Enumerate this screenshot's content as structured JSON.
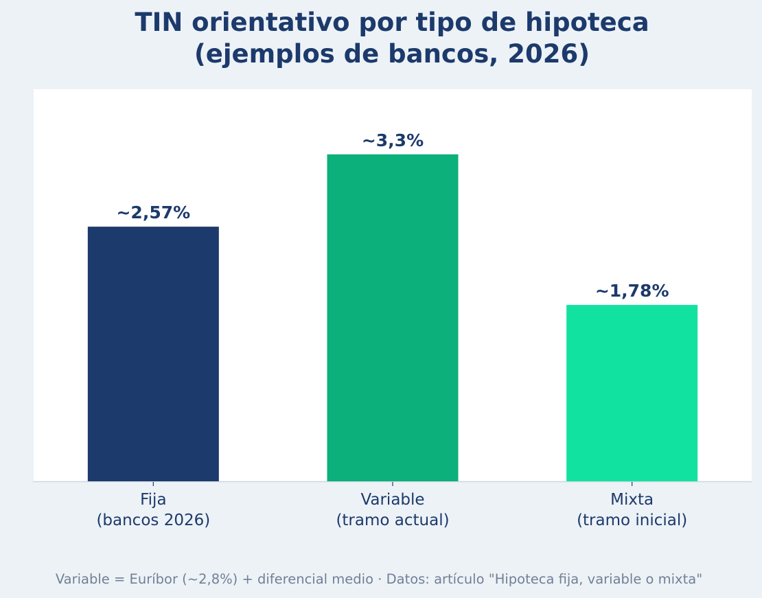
{
  "chart_data": {
    "type": "bar",
    "title_lines": [
      "TIN orientativo por tipo de hipoteca",
      "(ejemplos de bancos, 2026)"
    ],
    "categories": [
      [
        "Fija",
        "(bancos 2026)"
      ],
      [
        "Variable",
        "(tramo actual)"
      ],
      [
        "Mixta",
        "(tramo inicial)"
      ]
    ],
    "values": [
      2.57,
      3.3,
      1.78
    ],
    "value_labels": [
      "~2,57%",
      "~3,3%",
      "~1,78%"
    ],
    "colors": [
      "#1c3a6b",
      "#0bb07b",
      "#12e2a0"
    ],
    "ylim": [
      0,
      4.0
    ],
    "xlabel": "",
    "ylabel": "",
    "grid": false,
    "legend": "none"
  },
  "footnote": "Variable = Euríbor (~2,8%) + diferencial medio  ·  Datos: artículo \"Hipoteca fija, variable o mixta\""
}
